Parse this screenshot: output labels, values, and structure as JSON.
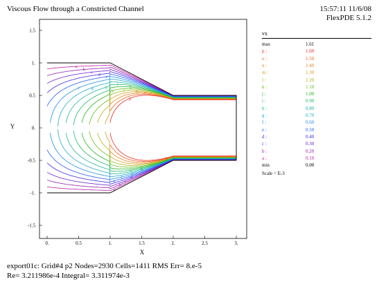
{
  "header": {
    "title": "Viscous Flow through a Constricted Channel",
    "timestamp": "15:57:11 11/6/08",
    "software": "FlexPDE 5.1.2"
  },
  "footer": {
    "line1": "export01c:  Grid#4  p2  Nodes=2930 Cells=1411 RMS Err= 8.e-5",
    "line2": "Re=  3.211986e-4   Integral=  3.311974e-3"
  },
  "legend": {
    "variable": "vx",
    "scale": "Scale = E-3",
    "entries": [
      {
        "key": "max",
        "value": "1.61",
        "color": "#000000"
      },
      {
        "key": "p :",
        "value": "1.60",
        "color": "#e8281e"
      },
      {
        "key": "o :",
        "value": "1.50",
        "color": "#f05a1e"
      },
      {
        "key": "n :",
        "value": "1.40",
        "color": "#e6821e"
      },
      {
        "key": "m :",
        "value": "1.30",
        "color": "#d2a01e"
      },
      {
        "key": "l :",
        "value": "1.20",
        "color": "#aab41e"
      },
      {
        "key": "k :",
        "value": "1.10",
        "color": "#64be1e"
      },
      {
        "key": "j :",
        "value": "1.00",
        "color": "#1eb41e"
      },
      {
        "key": "i :",
        "value": "0.90",
        "color": "#1eb464"
      },
      {
        "key": "h :",
        "value": "0.80",
        "color": "#1eb4a0"
      },
      {
        "key": "g :",
        "value": "0.70",
        "color": "#1eaac8"
      },
      {
        "key": "f :",
        "value": "0.60",
        "color": "#1e8ce6"
      },
      {
        "key": "e :",
        "value": "0.50",
        "color": "#1e5af0"
      },
      {
        "key": "d :",
        "value": "0.40",
        "color": "#3c28e6"
      },
      {
        "key": "c :",
        "value": "0.30",
        "color": "#6e1ed2"
      },
      {
        "key": "b :",
        "value": "0.20",
        "color": "#961eb4"
      },
      {
        "key": "a :",
        "value": "0.10",
        "color": "#be1ea0"
      },
      {
        "key": "min",
        "value": "0.00",
        "color": "#000000"
      }
    ]
  },
  "chart_data": {
    "type": "contour",
    "title": "Viscous Flow through a Constricted Channel",
    "variable": "vx",
    "xlabel": "X",
    "ylabel": "Y",
    "xlim": [
      -0.15,
      3.15
    ],
    "ylim": [
      -1.55,
      1.55
    ],
    "xticks": [
      "0.",
      "0.5",
      "1.",
      "1.5",
      "2.",
      "2.5",
      "3."
    ],
    "yticks": [
      "1.5",
      "1.",
      "0.5",
      "0.",
      "-0.5",
      "-1.",
      "-1.5"
    ],
    "channel_boundary": {
      "upper": [
        [
          0,
          1.0
        ],
        [
          1.0,
          1.0
        ],
        [
          2.0,
          0.5
        ],
        [
          3.0,
          0.5
        ]
      ],
      "lower": [
        [
          0,
          -1.0
        ],
        [
          1.0,
          -1.0
        ],
        [
          2.0,
          -0.5
        ],
        [
          3.0,
          -0.5
        ]
      ],
      "outlet_x": 3.0
    },
    "contour_levels": [
      {
        "label": "a",
        "value": 0.1
      },
      {
        "label": "b",
        "value": 0.2
      },
      {
        "label": "c",
        "value": 0.3
      },
      {
        "label": "d",
        "value": 0.4
      },
      {
        "label": "e",
        "value": 0.5
      },
      {
        "label": "f",
        "value": 0.6
      },
      {
        "label": "g",
        "value": 0.7
      },
      {
        "label": "h",
        "value": 0.8
      },
      {
        "label": "i",
        "value": 0.9
      },
      {
        "label": "j",
        "value": 1.0
      },
      {
        "label": "k",
        "value": 1.1
      },
      {
        "label": "l",
        "value": 1.2
      },
      {
        "label": "m",
        "value": 1.3
      },
      {
        "label": "n",
        "value": 1.4
      },
      {
        "label": "o",
        "value": 1.5
      },
      {
        "label": "p",
        "value": 1.6
      }
    ],
    "max": 1.61,
    "min": 0.0,
    "scale": "E-3"
  }
}
